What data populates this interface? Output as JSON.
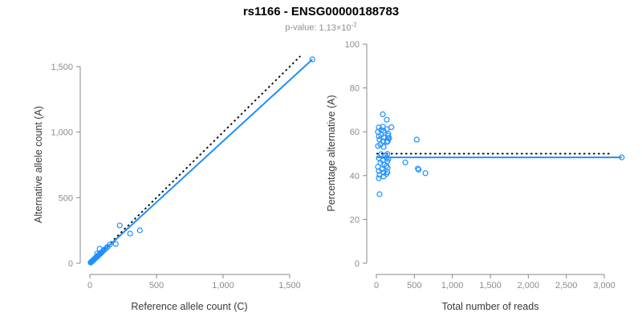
{
  "header": {
    "title": "rs1166 - ENSG00000188783",
    "pvalue_prefix": "p-value:",
    "pvalue_mantissa": "1.13",
    "pvalue_times": "×",
    "pvalue_base": "10",
    "pvalue_exponent": "-2"
  },
  "colors": {
    "point": "#1E90FF",
    "fit_line": "#1E90FF",
    "identity_line": "#000000",
    "axis": "#8A8A8A",
    "tick_label": "#8C8C8C",
    "axis_title": "#3A3A3A",
    "title": "#000000",
    "subtitle": "#8E8E8E",
    "background": "#FFFFFF"
  },
  "chart_data": [
    {
      "type": "scatter",
      "name": "allele-count-scatter",
      "xlabel": "Reference allele count (C)",
      "ylabel": "Alternative allele count (A)",
      "xlim": [
        0,
        1500
      ],
      "ylim": [
        0,
        1500
      ],
      "grid": false,
      "legend": false,
      "xticks": [
        {
          "v": 0,
          "label": "0"
        },
        {
          "v": 500,
          "label": "500"
        },
        {
          "v": 1000,
          "label": "1,000"
        },
        {
          "v": 1500,
          "label": "1,500"
        }
      ],
      "yticks": [
        {
          "v": 0,
          "label": "0"
        },
        {
          "v": 500,
          "label": "500"
        },
        {
          "v": 1000,
          "label": "1,000"
        },
        {
          "v": 1500,
          "label": "1,500"
        }
      ],
      "lines": [
        {
          "name": "identity-line",
          "style": "dotted",
          "color": "#000000",
          "x": [
            0,
            1580
          ],
          "y": [
            0,
            1580
          ]
        },
        {
          "name": "fit-line",
          "style": "solid",
          "color": "#1E90FF",
          "x": [
            0,
            1670
          ],
          "y": [
            0,
            1555
          ]
        }
      ],
      "points": [
        [
          6,
          5
        ],
        [
          8,
          8
        ],
        [
          10,
          9
        ],
        [
          12,
          11
        ],
        [
          14,
          13
        ],
        [
          16,
          15
        ],
        [
          18,
          16
        ],
        [
          20,
          19
        ],
        [
          22,
          20
        ],
        [
          24,
          23
        ],
        [
          26,
          24
        ],
        [
          28,
          27
        ],
        [
          30,
          28
        ],
        [
          33,
          31
        ],
        [
          36,
          34
        ],
        [
          39,
          36
        ],
        [
          42,
          40
        ],
        [
          45,
          42
        ],
        [
          48,
          46
        ],
        [
          52,
          48
        ],
        [
          56,
          52
        ],
        [
          60,
          57
        ],
        [
          65,
          60
        ],
        [
          70,
          66
        ],
        [
          75,
          70
        ],
        [
          80,
          75
        ],
        [
          85,
          80
        ],
        [
          54,
          73
        ],
        [
          73,
          110
        ],
        [
          92,
          87
        ],
        [
          100,
          95
        ],
        [
          110,
          104
        ],
        [
          120,
          113
        ],
        [
          132,
          124
        ],
        [
          150,
          142
        ],
        [
          194,
          147
        ],
        [
          224,
          288
        ],
        [
          302,
          226
        ],
        [
          375,
          251
        ],
        [
          1670,
          1555
        ]
      ]
    },
    {
      "type": "scatter",
      "name": "percentage-scatter",
      "xlabel": "Total number of reads",
      "ylabel": "Percentage alternative (A)",
      "xlim": [
        0,
        3000
      ],
      "ylim": [
        0,
        100
      ],
      "grid": false,
      "legend": false,
      "xticks": [
        {
          "v": 0,
          "label": "0"
        },
        {
          "v": 500,
          "label": "500"
        },
        {
          "v": 1000,
          "label": "1,000"
        },
        {
          "v": 1500,
          "label": "1,500"
        },
        {
          "v": 2000,
          "label": "2,000"
        },
        {
          "v": 2500,
          "label": "2,500"
        },
        {
          "v": 3000,
          "label": "3,000"
        }
      ],
      "yticks": [
        {
          "v": 0,
          "label": "0"
        },
        {
          "v": 20,
          "label": "20"
        },
        {
          "v": 40,
          "label": "40"
        },
        {
          "v": 60,
          "label": "60"
        },
        {
          "v": 80,
          "label": "80"
        },
        {
          "v": 100,
          "label": "100"
        }
      ],
      "lines": [
        {
          "name": "expected-line",
          "style": "dotted",
          "color": "#000000",
          "x": [
            0,
            3100
          ],
          "y": [
            50,
            50
          ]
        },
        {
          "name": "fit-line",
          "style": "solid",
          "color": "#1E90FF",
          "x": [
            0,
            3230
          ],
          "y": [
            48.3,
            48.3
          ]
        }
      ],
      "points": [
        [
          85,
          68
        ],
        [
          137,
          65.5
        ],
        [
          21,
          60
        ],
        [
          32,
          62
        ],
        [
          63,
          60.8
        ],
        [
          85,
          62.3
        ],
        [
          95,
          60.4
        ],
        [
          137,
          61.2
        ],
        [
          198,
          62.1
        ],
        [
          158,
          59
        ],
        [
          150,
          58.2
        ],
        [
          63,
          58.6
        ],
        [
          32,
          57.9
        ],
        [
          95,
          57.5
        ],
        [
          169,
          57.1
        ],
        [
          153,
          57.1
        ],
        [
          42,
          56.4
        ],
        [
          85,
          55.7
        ],
        [
          150,
          55.7
        ],
        [
          137,
          55.3
        ],
        [
          53,
          54.2
        ],
        [
          21,
          53.5
        ],
        [
          95,
          53.1
        ],
        [
          532,
          56.4
        ],
        [
          63,
          49.8
        ],
        [
          145,
          49.9
        ],
        [
          116,
          49.1
        ],
        [
          32,
          48
        ],
        [
          134,
          48.1
        ],
        [
          158,
          47.6
        ],
        [
          85,
          46.9
        ],
        [
          381,
          46
        ],
        [
          145,
          46.5
        ],
        [
          53,
          45.8
        ],
        [
          106,
          45.1
        ],
        [
          21,
          44
        ],
        [
          134,
          44.4
        ],
        [
          148,
          43.6
        ],
        [
          74,
          42.9
        ],
        [
          546,
          43.2
        ],
        [
          556,
          42.7
        ],
        [
          32,
          42.1
        ],
        [
          95,
          41.4
        ],
        [
          645,
          41.1
        ],
        [
          145,
          41.6
        ],
        [
          134,
          40.8
        ],
        [
          42,
          40.3
        ],
        [
          95,
          39.6
        ],
        [
          32,
          38.8
        ],
        [
          42,
          31.5
        ],
        [
          3230,
          48.3
        ]
      ]
    }
  ]
}
